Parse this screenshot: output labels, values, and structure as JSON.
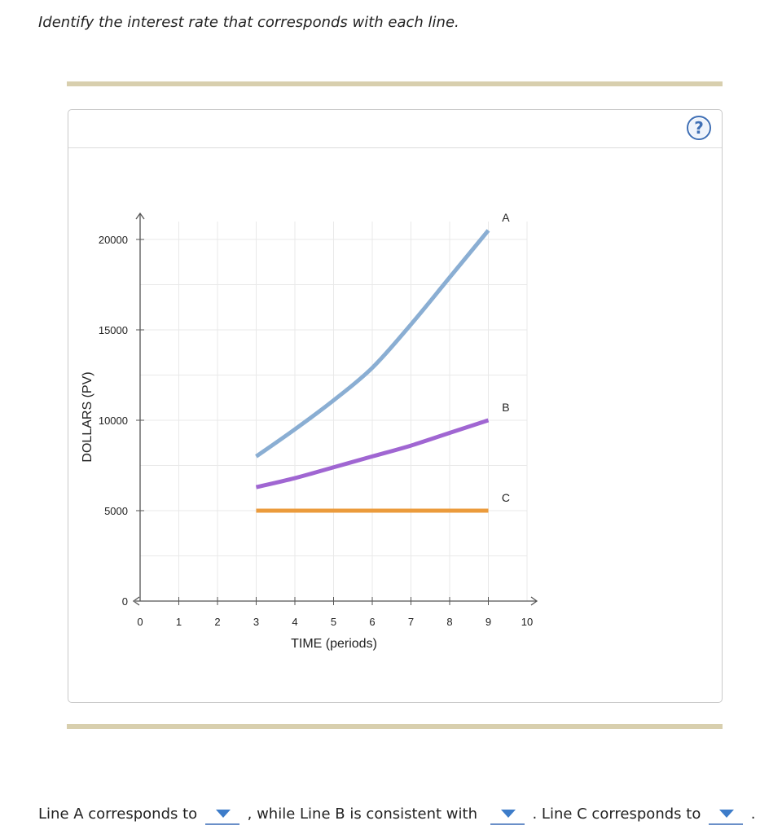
{
  "instruction": "Identify the interest rate that corresponds with each line.",
  "panel": {
    "help_label": "?"
  },
  "chart_data": {
    "type": "line",
    "xlabel": "TIME (periods)",
    "ylabel": "DOLLARS (PV)",
    "xlim": [
      0,
      10
    ],
    "ylim": [
      0,
      20000
    ],
    "x_ticks": [
      0,
      1,
      2,
      3,
      4,
      5,
      6,
      7,
      8,
      9,
      10
    ],
    "y_ticks": [
      0,
      5000,
      10000,
      15000,
      20000
    ],
    "grid": true,
    "series": [
      {
        "name": "A",
        "color": "#8aaed3",
        "x": [
          3,
          4,
          5,
          6,
          7,
          8,
          9
        ],
        "values": [
          8000,
          9500,
          11100,
          12900,
          15300,
          17900,
          20500
        ]
      },
      {
        "name": "B",
        "color": "#a066d2",
        "x": [
          3,
          4,
          5,
          6,
          7,
          8,
          9
        ],
        "values": [
          6300,
          6800,
          7400,
          8000,
          8600,
          9300,
          10000
        ]
      },
      {
        "name": "C",
        "color": "#eb9b3c",
        "x": [
          3,
          9
        ],
        "values": [
          5000,
          5000
        ]
      }
    ]
  },
  "answer": {
    "part1": "Line A corresponds to",
    "part2": ", while Line B is consistent with",
    "part3": ". Line C corresponds to",
    "part4": "."
  },
  "dropdowns": {
    "line_a": {
      "selected": ""
    },
    "line_b": {
      "selected": ""
    },
    "line_c": {
      "selected": ""
    }
  }
}
